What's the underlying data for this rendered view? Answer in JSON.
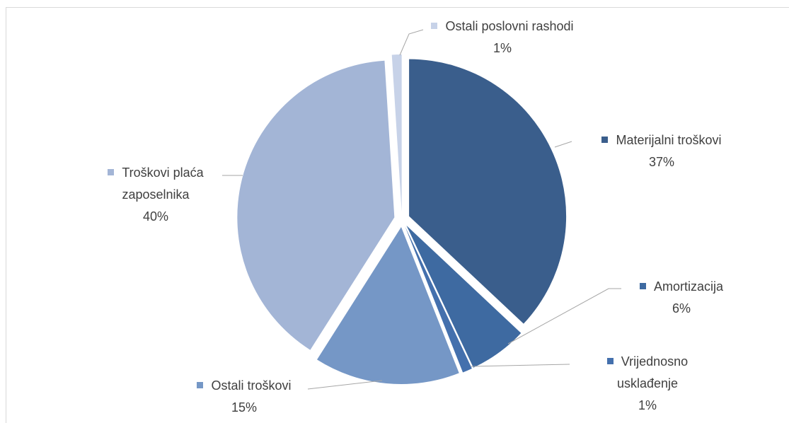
{
  "chart_data": {
    "type": "pie",
    "categories": [
      "Materijalni troškovi",
      "Amortizacija",
      "Vrijednosno usklađenje",
      "Ostali troškovi",
      "Troškovi plaća zaposelnika",
      "Ostali poslovni rashodi"
    ],
    "values": [
      37,
      6,
      1,
      15,
      40,
      1
    ],
    "value_labels": [
      "37%",
      "6%",
      "1%",
      "15%",
      "40%",
      "1%"
    ],
    "colors": [
      "#3a5e8c",
      "#3e6aa1",
      "#4470ad",
      "#7597c6",
      "#a3b5d6",
      "#c7d2e8"
    ]
  }
}
